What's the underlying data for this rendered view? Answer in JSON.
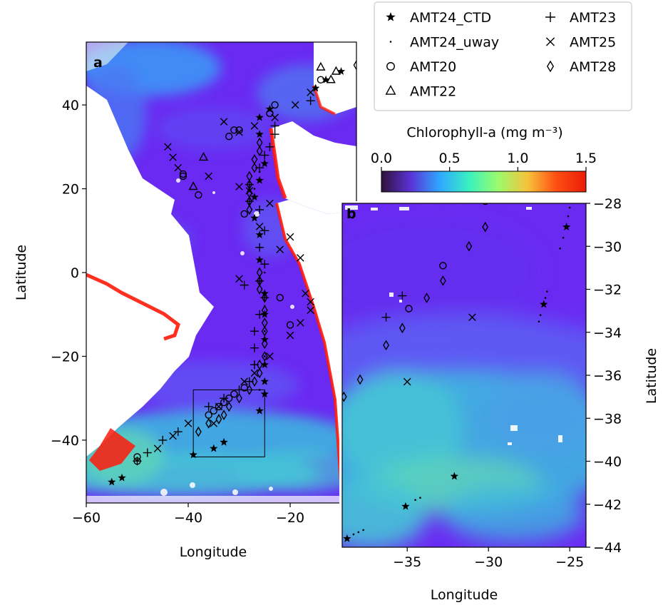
{
  "chart_data": [
    {
      "panel": "a",
      "type": "scatter",
      "background": "satellite chlorophyll-a map",
      "xlabel": "Longitude",
      "ylabel": "Latitude",
      "xlim": [
        -60,
        -7
      ],
      "ylim": [
        -55,
        55
      ],
      "xticks": [
        -60,
        -40,
        -20
      ],
      "xtick_labels": [
        "−60",
        "−40",
        "−20"
      ],
      "yticks": [
        40,
        20,
        0,
        -20,
        -40
      ],
      "ytick_labels": [
        "40",
        "20",
        "0",
        "−20",
        "−40"
      ],
      "inset_box": {
        "x": [
          -39,
          -25
        ],
        "y": [
          -44,
          -28
        ]
      },
      "series": [
        {
          "name": "AMT24_CTD",
          "marker": "star",
          "points": [
            [
              -13,
              46
            ],
            [
              -15,
              44
            ],
            [
              -26,
              37
            ],
            [
              -24,
              39
            ],
            [
              -26,
              33
            ],
            [
              -25,
              26
            ],
            [
              -26,
              22
            ],
            [
              -27,
              18
            ],
            [
              -27,
              13
            ],
            [
              -26,
              9
            ],
            [
              -26,
              3
            ],
            [
              -25,
              -5
            ],
            [
              -25,
              -10
            ],
            [
              -25,
              -16
            ],
            [
              -25,
              -22
            ],
            [
              -25,
              -26
            ],
            [
              -25,
              -29
            ],
            [
              -26,
              -33
            ],
            [
              -33,
              -40.5
            ],
            [
              -35,
              -42
            ],
            [
              -39,
              -43.5
            ],
            [
              -53,
              -49
            ],
            [
              -55,
              -50
            ],
            [
              -10,
              48
            ]
          ]
        },
        {
          "name": "AMT24_uway",
          "marker": "dot",
          "points": [
            [
              -25,
              28
            ],
            [
              -26,
              24
            ],
            [
              -27,
              20
            ],
            [
              -28,
              16
            ],
            [
              -26,
              6
            ],
            [
              -25,
              0
            ],
            [
              -25,
              -8
            ],
            [
              -25,
              -14
            ],
            [
              -25,
              -20
            ],
            [
              -26,
              -28
            ]
          ]
        },
        {
          "name": "AMT20",
          "marker": "circle",
          "points": [
            [
              -23,
              40
            ],
            [
              -24,
              38
            ],
            [
              -30,
              34
            ],
            [
              -31,
              34
            ],
            [
              -32,
              32.5
            ],
            [
              -41,
              23.5
            ],
            [
              -41,
              23
            ],
            [
              -38,
              18.5
            ],
            [
              -29,
              14
            ],
            [
              -22,
              -6
            ],
            [
              -20,
              -12.5
            ],
            [
              -29,
              -27.5
            ],
            [
              -31,
              -29
            ],
            [
              -32,
              -30
            ],
            [
              -33,
              -31
            ],
            [
              -34,
              -32
            ],
            [
              -35,
              -33
            ],
            [
              -36,
              -34
            ],
            [
              -50,
              -44
            ],
            [
              -50,
              -45
            ],
            [
              -14,
              46
            ]
          ]
        },
        {
          "name": "AMT22",
          "marker": "triangle",
          "points": [
            [
              -14,
              49
            ],
            [
              -11,
              48
            ],
            [
              -12,
              46
            ],
            [
              -37,
              27.5
            ],
            [
              -39,
              20.5
            ]
          ]
        },
        {
          "name": "AMT23",
          "marker": "plus",
          "points": [
            [
              -16,
              41
            ],
            [
              -23,
              35
            ],
            [
              -23,
              33
            ],
            [
              -24,
              30
            ],
            [
              -25,
              28
            ],
            [
              -26,
              25
            ],
            [
              -28,
              21
            ],
            [
              -28,
              17
            ],
            [
              -26,
              15
            ],
            [
              -25,
              10
            ],
            [
              -26,
              6
            ],
            [
              -25,
              2
            ],
            [
              -26,
              -2
            ],
            [
              -29,
              -3
            ],
            [
              -25,
              -6
            ],
            [
              -26,
              -10
            ],
            [
              -27,
              -14
            ],
            [
              -27,
              -18
            ],
            [
              -27,
              -22
            ],
            [
              -28,
              -26
            ],
            [
              -30,
              -28
            ],
            [
              -33,
              -30
            ],
            [
              -36,
              -32
            ],
            [
              -42,
              -38
            ],
            [
              -45,
              -40
            ],
            [
              -48,
              -43
            ],
            [
              -50,
              -45
            ]
          ]
        },
        {
          "name": "AMT25",
          "marker": "x",
          "points": [
            [
              -16,
              43
            ],
            [
              -19,
              40
            ],
            [
              -23,
              37
            ],
            [
              -27,
              35
            ],
            [
              -30,
              33.5
            ],
            [
              -33,
              36
            ],
            [
              -44,
              30
            ],
            [
              -43,
              27.5
            ],
            [
              -42,
              25
            ],
            [
              -36,
              23
            ],
            [
              -30,
              20.5
            ],
            [
              -28,
              19.5
            ],
            [
              -24,
              16.5
            ],
            [
              -26,
              11
            ],
            [
              -20,
              8.5
            ],
            [
              -22,
              5.5
            ],
            [
              -18,
              3.5
            ],
            [
              -30,
              -1.5
            ],
            [
              -17,
              -5
            ],
            [
              -16,
              -7
            ],
            [
              -16,
              -9
            ],
            [
              -18,
              -12
            ],
            [
              -20,
              -15
            ],
            [
              -24,
              -20
            ],
            [
              -27,
              -24
            ],
            [
              -29,
              -26
            ],
            [
              -34,
              -32
            ],
            [
              -35,
              -36
            ],
            [
              -40,
              -36
            ],
            [
              -43,
              -39
            ],
            [
              -46,
              -42
            ]
          ]
        },
        {
          "name": "AMT28",
          "marker": "diamond",
          "points": [
            [
              -7,
              49.5
            ],
            [
              -26,
              31
            ],
            [
              -26,
              29
            ],
            [
              -27,
              27
            ],
            [
              -27,
              25
            ],
            [
              -28,
              23
            ],
            [
              -28,
              21
            ],
            [
              -28,
              19
            ],
            [
              -28,
              17
            ],
            [
              -28,
              15
            ],
            [
              -26,
              0
            ],
            [
              -26,
              -2
            ],
            [
              -26,
              -4
            ],
            [
              -25,
              -6
            ],
            [
              -25,
              -9
            ],
            [
              -25,
              -12
            ],
            [
              -25,
              -14
            ],
            [
              -25,
              -17
            ],
            [
              -25,
              -20
            ],
            [
              -26,
              -22
            ],
            [
              -26,
              -24
            ],
            [
              -27,
              -26
            ],
            [
              -28,
              -28
            ],
            [
              -30,
              -30
            ],
            [
              -32,
              -32
            ],
            [
              -33,
              -34
            ],
            [
              -34,
              -35
            ],
            [
              -36,
              -36
            ],
            [
              -38,
              -38
            ]
          ]
        }
      ]
    },
    {
      "panel": "b",
      "type": "scatter",
      "background": "satellite chlorophyll-a map (zoom)",
      "xlabel": "Longitude",
      "ylabel": "Latitude",
      "xlim": [
        -39,
        -24
      ],
      "ylim": [
        -44,
        -28
      ],
      "xticks": [
        -35,
        -30,
        -25
      ],
      "xtick_labels": [
        "−35",
        "−30",
        "−25"
      ],
      "yticks": [
        -28,
        -30,
        -32,
        -34,
        -36,
        -38,
        -40,
        -42,
        -44
      ],
      "ytick_labels": [
        "−28",
        "−30",
        "−32",
        "−34",
        "−36",
        "−38",
        "−40",
        "−42",
        "−44"
      ],
      "series": [
        {
          "name": "AMT24_CTD",
          "marker": "star",
          "points": [
            [
              -25.2,
              -29.1
            ],
            [
              -26.6,
              -32.7
            ],
            [
              -32.1,
              -40.7
            ],
            [
              -35.1,
              -42.1
            ],
            [
              -38.7,
              -43.6
            ]
          ]
        },
        {
          "name": "AMT24_uway",
          "marker": "dot",
          "points": [
            [
              -25,
              -28.2
            ],
            [
              -25.1,
              -28.6
            ],
            [
              -25.4,
              -29.6
            ],
            [
              -25.6,
              -30.1
            ],
            [
              -26.4,
              -32.1
            ],
            [
              -26.5,
              -32.4
            ],
            [
              -26.8,
              -33.2
            ],
            [
              -26.9,
              -33.5
            ],
            [
              -34.2,
              -41.7
            ],
            [
              -34.5,
              -41.8
            ],
            [
              -38.3,
              -43.4
            ],
            [
              -38.0,
              -43.3
            ],
            [
              -37.7,
              -43.2
            ]
          ]
        },
        {
          "name": "AMT20",
          "marker": "circle",
          "points": [
            [
              -32.8,
              -30.9
            ],
            [
              -34.9,
              -32.9
            ],
            [
              -30.2,
              -27.9
            ]
          ]
        },
        {
          "name": "AMT23",
          "marker": "plus",
          "points": [
            [
              -35.3,
              -32.3
            ],
            [
              -36.3,
              -33.3
            ]
          ]
        },
        {
          "name": "AMT25",
          "marker": "x",
          "points": [
            [
              -31,
              -33.3
            ],
            [
              -35,
              -36.3
            ]
          ]
        },
        {
          "name": "AMT28",
          "marker": "diamond",
          "points": [
            [
              -30.2,
              -29.1
            ],
            [
              -31.2,
              -30
            ],
            [
              -32.8,
              -31.6
            ],
            [
              -33.8,
              -32.4
            ],
            [
              -35.3,
              -33.8
            ],
            [
              -36.3,
              -34.6
            ],
            [
              -37.9,
              -36.2
            ],
            [
              -38.9,
              -37
            ]
          ]
        }
      ]
    }
  ],
  "colorbar": {
    "label": "Chlorophyll-a (mg m⁻³)",
    "range": [
      0.0,
      1.5
    ],
    "ticks": [
      "0.0",
      "0.5",
      "1.0",
      "1.5"
    ],
    "colormap": [
      "#30123b",
      "#5a32d6",
      "#2ea8ff",
      "#39f2c0",
      "#9cfb6c",
      "#f6c33b",
      "#ff4d12",
      "#e81d08"
    ]
  },
  "legend": {
    "placement": "top-right",
    "entries": [
      {
        "name": "AMT24_CTD",
        "marker": "star"
      },
      {
        "name": "AMT24_uway",
        "marker": "dot"
      },
      {
        "name": "AMT20",
        "marker": "circle"
      },
      {
        "name": "AMT22",
        "marker": "triangle"
      },
      {
        "name": "AMT23",
        "marker": "plus"
      },
      {
        "name": "AMT25",
        "marker": "x"
      },
      {
        "name": "AMT28",
        "marker": "diamond"
      }
    ]
  },
  "panel_labels": {
    "a": "a",
    "b": "b"
  },
  "colors": {
    "ocean": "#6a2af2",
    "ocean_light": "#5b64f4",
    "ocean_green": "#46c4d6",
    "land": "#ffffff",
    "coastal_high": "#ff1a0a",
    "marker": "#000000"
  }
}
